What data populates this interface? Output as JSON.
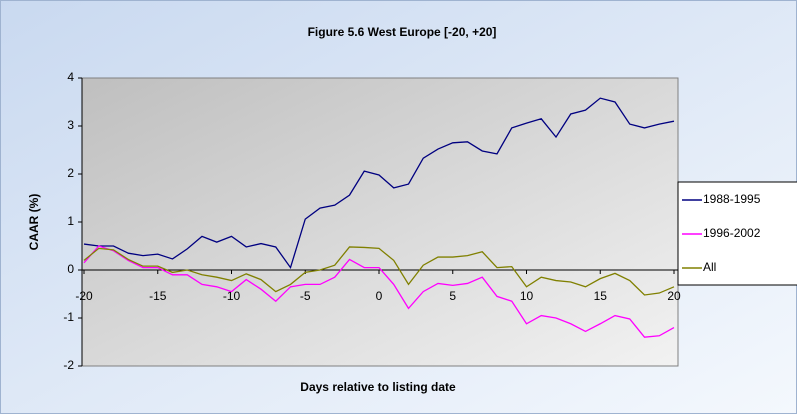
{
  "chart_data": {
    "type": "line",
    "title": "Figure 5.6 West Europe [-20, +20]",
    "x_label": "Days relative to listing date",
    "y_label": "CAAR (%)",
    "x": [
      -20,
      -19,
      -18,
      -17,
      -16,
      -15,
      -14,
      -13,
      -12,
      -11,
      -10,
      -9,
      -8,
      -7,
      -6,
      -5,
      -4,
      -3,
      -2,
      -1,
      0,
      1,
      2,
      3,
      4,
      5,
      6,
      7,
      8,
      9,
      10,
      11,
      12,
      13,
      14,
      15,
      16,
      17,
      18,
      19,
      20
    ],
    "series": [
      {
        "name": "1988-1995",
        "color": "#000080",
        "values": [
          0.54,
          0.5,
          0.5,
          0.35,
          0.3,
          0.33,
          0.23,
          0.44,
          0.7,
          0.58,
          0.7,
          0.48,
          0.55,
          0.48,
          0.05,
          1.06,
          1.29,
          1.35,
          1.56,
          2.06,
          1.98,
          1.71,
          1.79,
          2.33,
          2.52,
          2.65,
          2.67,
          2.48,
          2.42,
          2.96,
          3.06,
          3.15,
          2.77,
          3.25,
          3.33,
          3.58,
          3.5,
          3.04,
          2.96,
          3.04,
          3.1
        ]
      },
      {
        "name": "1996-2002",
        "color": "#ff00ff",
        "values": [
          0.15,
          0.5,
          0.4,
          0.2,
          0.05,
          0.05,
          -0.1,
          -0.1,
          -0.3,
          -0.35,
          -0.45,
          -0.2,
          -0.4,
          -0.65,
          -0.35,
          -0.3,
          -0.3,
          -0.15,
          0.22,
          0.05,
          0.05,
          -0.3,
          -0.8,
          -0.45,
          -0.28,
          -0.32,
          -0.28,
          -0.15,
          -0.55,
          -0.65,
          -1.12,
          -0.95,
          -1.0,
          -1.12,
          -1.28,
          -1.12,
          -0.95,
          -1.02,
          -1.4,
          -1.37,
          -1.2
        ]
      },
      {
        "name": "All",
        "color": "#808000",
        "values": [
          0.2,
          0.45,
          0.42,
          0.22,
          0.08,
          0.08,
          -0.05,
          0.0,
          -0.1,
          -0.15,
          -0.22,
          -0.08,
          -0.2,
          -0.45,
          -0.3,
          -0.05,
          0.0,
          0.1,
          0.48,
          0.47,
          0.45,
          0.2,
          -0.3,
          0.1,
          0.27,
          0.27,
          0.3,
          0.38,
          0.05,
          0.07,
          -0.35,
          -0.15,
          -0.22,
          -0.25,
          -0.35,
          -0.18,
          -0.07,
          -0.22,
          -0.52,
          -0.48,
          -0.35
        ]
      }
    ],
    "xlim": [
      -20,
      20
    ],
    "xticks": [
      -20,
      -15,
      -10,
      -5,
      0,
      5,
      10,
      15,
      20
    ],
    "ylim": [
      -2,
      4
    ],
    "yticks": [
      -2,
      -1,
      0,
      1,
      2,
      3,
      4
    ],
    "legend": "right"
  }
}
